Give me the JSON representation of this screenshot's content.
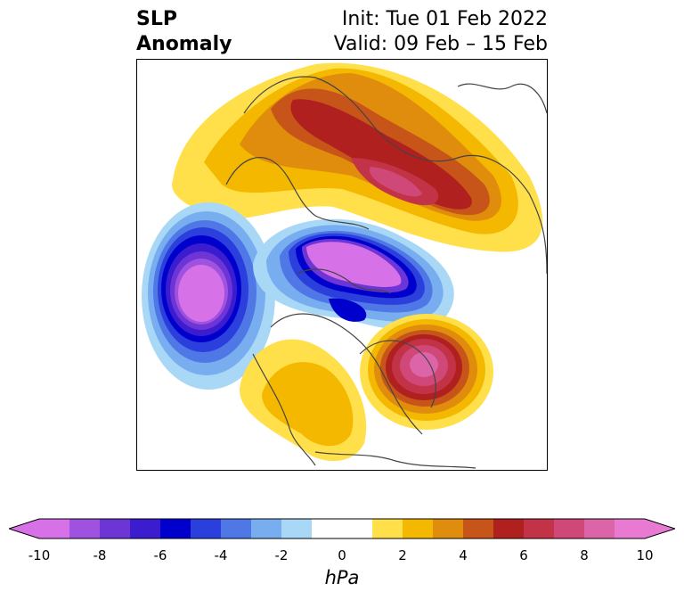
{
  "title": {
    "line1": "SLP",
    "line2": "Anomaly",
    "init": "Init: Tue 01 Feb 2022",
    "valid": "Valid: 09 Feb – 15 Feb"
  },
  "colorbar": {
    "unit": "hPa",
    "ticks": [
      "-10",
      "-8",
      "-6",
      "-4",
      "-2",
      "0",
      "2",
      "4",
      "6",
      "8",
      "10"
    ],
    "colors": [
      "#d671e8",
      "#9f52df",
      "#6e35d6",
      "#3b1ccf",
      "#0000cd",
      "#2a3fdc",
      "#4f77e6",
      "#78aef0",
      "#a9d8f7",
      "#ffffff",
      "#ffffff",
      "#ffe04a",
      "#f5b800",
      "#e08c0c",
      "#c75418",
      "#b0201f",
      "#c23348",
      "#cf4878",
      "#dc64a8",
      "#e87ad2"
    ],
    "extend_low_color": "#d671e8",
    "extend_high_color": "#e87ad2"
  },
  "map": {
    "projection": "polar stereographic (North Pole)",
    "features": {
      "positive_anomaly_centers": [
        "Russia / Siberia",
        "western North Atlantic",
        "United States"
      ],
      "negative_anomaly_centers": [
        "North Pacific / Aleutians",
        "Arctic / Canadian Archipelago"
      ]
    }
  }
}
